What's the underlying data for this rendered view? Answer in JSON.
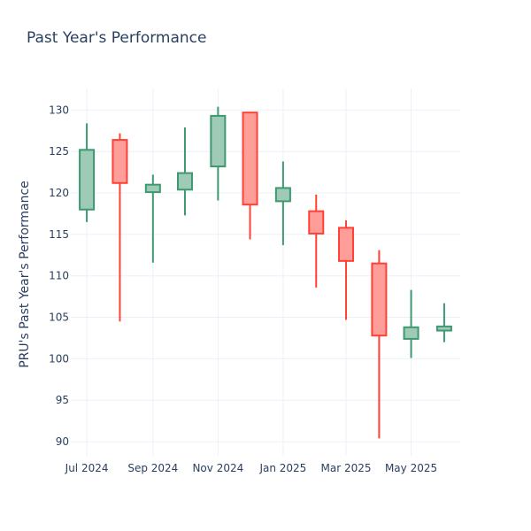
{
  "chart_data": {
    "type": "candlestick",
    "title": "Past Year's Performance",
    "xlabel": "",
    "ylabel": "PRU's Past Year's Performance",
    "ylim": [
      88.3,
      132.6
    ],
    "yticks": [
      90,
      95,
      100,
      105,
      110,
      115,
      120,
      125,
      130
    ],
    "xticks": [
      {
        "label": "Jul 2024",
        "date": "2024-07-01"
      },
      {
        "label": "Sep 2024",
        "date": "2024-09-01"
      },
      {
        "label": "Nov 2024",
        "date": "2024-11-01"
      },
      {
        "label": "Jan 2025",
        "date": "2025-01-01"
      },
      {
        "label": "Mar 2025",
        "date": "2025-03-01"
      },
      {
        "label": "May 2025",
        "date": "2025-05-01"
      }
    ],
    "grid": true,
    "colors": {
      "increasing": "#3d9970",
      "decreasing": "#ff4136",
      "increasing_fill": "#9ecab6",
      "decreasing_fill": "#ff9e99"
    },
    "candles": [
      {
        "date": "2024-07-01",
        "open": 118.0,
        "high": 128.4,
        "low": 116.5,
        "close": 125.2
      },
      {
        "date": "2024-08-01",
        "open": 126.4,
        "high": 127.2,
        "low": 104.5,
        "close": 121.2
      },
      {
        "date": "2024-09-01",
        "open": 120.1,
        "high": 122.2,
        "low": 111.6,
        "close": 121.0
      },
      {
        "date": "2024-10-01",
        "open": 120.4,
        "high": 127.9,
        "low": 117.3,
        "close": 122.4
      },
      {
        "date": "2024-11-01",
        "open": 123.2,
        "high": 130.4,
        "low": 119.1,
        "close": 129.3
      },
      {
        "date": "2024-12-01",
        "open": 129.7,
        "high": 129.7,
        "low": 114.4,
        "close": 118.6
      },
      {
        "date": "2025-01-01",
        "open": 119.0,
        "high": 123.8,
        "low": 113.7,
        "close": 120.6
      },
      {
        "date": "2025-02-01",
        "open": 117.8,
        "high": 119.8,
        "low": 108.6,
        "close": 115.1
      },
      {
        "date": "2025-03-01",
        "open": 115.8,
        "high": 116.7,
        "low": 104.7,
        "close": 111.8
      },
      {
        "date": "2025-04-01",
        "open": 111.5,
        "high": 113.1,
        "low": 90.4,
        "close": 102.8
      },
      {
        "date": "2025-05-01",
        "open": 102.4,
        "high": 108.3,
        "low": 100.1,
        "close": 103.8
      },
      {
        "date": "2025-06-01",
        "open": 103.4,
        "high": 106.7,
        "low": 102.0,
        "close": 103.9
      }
    ]
  }
}
